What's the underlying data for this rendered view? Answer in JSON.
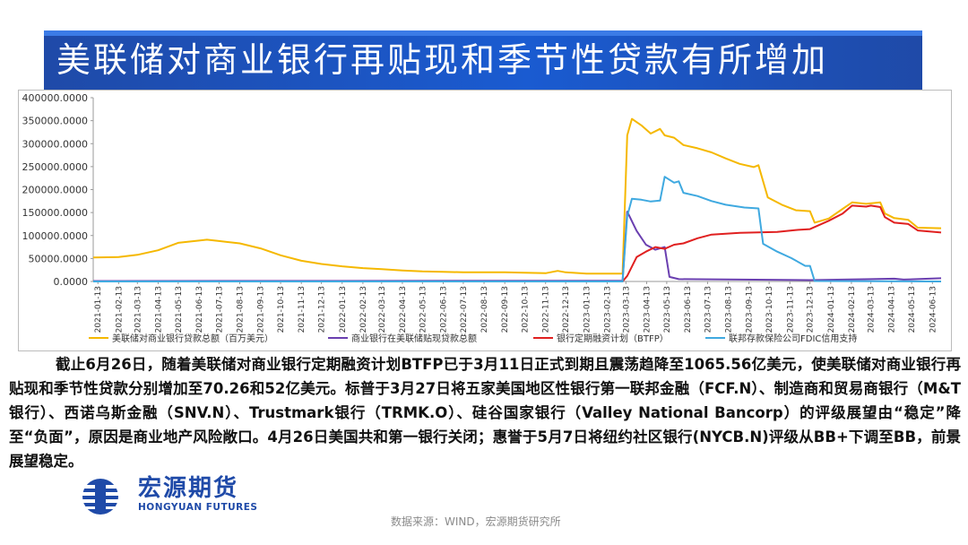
{
  "title": "美联储对商业银行再贴现和季节性贷款有所增加",
  "chart_data": {
    "type": "line",
    "y_ticks": [
      "400000.0000",
      "350000.0000",
      "300000.0000",
      "250000.0000",
      "200000.0000",
      "150000.0000",
      "100000.0000",
      "50000.0000",
      "0.0000"
    ],
    "ylim": [
      0,
      400000
    ],
    "x_labels": [
      "2021-01-13",
      "2021-02-13",
      "2021-03-13",
      "2021-04-13",
      "2021-05-13",
      "2021-06-13",
      "2021-07-13",
      "2021-08-13",
      "2021-09-13",
      "2021-10-13",
      "2021-11-13",
      "2021-12-13",
      "2022-01-13",
      "2022-02-13",
      "2022-03-13",
      "2022-04-13",
      "2022-05-13",
      "2022-06-13",
      "2022-07-13",
      "2022-08-13",
      "2022-09-13",
      "2022-10-13",
      "2022-11-13",
      "2022-12-13",
      "2023-01-13",
      "2023-02-13",
      "2023-03-13",
      "2023-04-13",
      "2023-05-13",
      "2023-06-13",
      "2023-07-13",
      "2023-08-13",
      "2023-09-13",
      "2023-10-13",
      "2023-11-13",
      "2023-12-13",
      "2024-01-13",
      "2024-02-13",
      "2024-03-13",
      "2024-04-13",
      "2024-05-13",
      "2024-06-13"
    ],
    "x_start": "2021-01-06",
    "x_end": "2024-06-26",
    "series": [
      {
        "name": "美联储对商业银行贷款总额（百万美元）",
        "color": "#f5b800",
        "points": [
          [
            "2021-01-06",
            52000
          ],
          [
            "2021-02-13",
            53000
          ],
          [
            "2021-03-13",
            58000
          ],
          [
            "2021-04-13",
            68000
          ],
          [
            "2021-05-13",
            84000
          ],
          [
            "2021-06-13",
            89000
          ],
          [
            "2021-06-25",
            91000
          ],
          [
            "2021-07-13",
            88000
          ],
          [
            "2021-08-13",
            83000
          ],
          [
            "2021-09-13",
            72000
          ],
          [
            "2021-10-13",
            57000
          ],
          [
            "2021-11-13",
            45000
          ],
          [
            "2021-12-13",
            38000
          ],
          [
            "2022-01-13",
            33000
          ],
          [
            "2022-02-13",
            29000
          ],
          [
            "2022-03-13",
            27000
          ],
          [
            "2022-04-13",
            24000
          ],
          [
            "2022-05-13",
            22000
          ],
          [
            "2022-06-13",
            21000
          ],
          [
            "2022-07-13",
            20000
          ],
          [
            "2022-08-13",
            20000
          ],
          [
            "2022-09-13",
            20000
          ],
          [
            "2022-10-13",
            19000
          ],
          [
            "2022-11-13",
            18000
          ],
          [
            "2022-12-01",
            23000
          ],
          [
            "2022-12-13",
            20000
          ],
          [
            "2023-01-13",
            17000
          ],
          [
            "2023-02-13",
            17000
          ],
          [
            "2023-03-08",
            17000
          ],
          [
            "2023-03-15",
            318000
          ],
          [
            "2023-03-22",
            354000
          ],
          [
            "2023-04-05",
            340000
          ],
          [
            "2023-04-19",
            322000
          ],
          [
            "2023-05-03",
            332000
          ],
          [
            "2023-05-10",
            318000
          ],
          [
            "2023-05-24",
            313000
          ],
          [
            "2023-06-07",
            297000
          ],
          [
            "2023-06-28",
            290000
          ],
          [
            "2023-07-19",
            281000
          ],
          [
            "2023-08-09",
            268000
          ],
          [
            "2023-08-30",
            256000
          ],
          [
            "2023-09-20",
            249000
          ],
          [
            "2023-09-27",
            253000
          ],
          [
            "2023-10-11",
            183000
          ],
          [
            "2023-11-01",
            167000
          ],
          [
            "2023-11-22",
            155000
          ],
          [
            "2023-12-13",
            153000
          ],
          [
            "2023-12-20",
            128000
          ],
          [
            "2024-01-10",
            137000
          ],
          [
            "2024-01-31",
            158000
          ],
          [
            "2024-02-14",
            172000
          ],
          [
            "2024-03-06",
            169000
          ],
          [
            "2024-03-27",
            172000
          ],
          [
            "2024-04-03",
            148000
          ],
          [
            "2024-04-17",
            138000
          ],
          [
            "2024-05-08",
            134000
          ],
          [
            "2024-05-22",
            117000
          ],
          [
            "2024-06-26",
            116000
          ]
        ]
      },
      {
        "name": "商业银行在美联储贴现贷款总额",
        "color": "#6a3fb0",
        "points": [
          [
            "2021-01-06",
            1000
          ],
          [
            "2022-12-13",
            1500
          ],
          [
            "2023-03-08",
            1500
          ],
          [
            "2023-03-15",
            152000
          ],
          [
            "2023-03-29",
            110000
          ],
          [
            "2023-04-12",
            80000
          ],
          [
            "2023-04-26",
            69000
          ],
          [
            "2023-05-10",
            75000
          ],
          [
            "2023-05-17",
            10000
          ],
          [
            "2023-05-31",
            5000
          ],
          [
            "2023-12-13",
            3000
          ],
          [
            "2024-03-13",
            5000
          ],
          [
            "2024-04-17",
            6000
          ],
          [
            "2024-05-01",
            4000
          ],
          [
            "2024-06-26",
            7000
          ]
        ]
      },
      {
        "name": "银行定期融资计划（BTFP）",
        "color": "#e02020",
        "points": [
          [
            "2021-01-06",
            0
          ],
          [
            "2023-03-08",
            0
          ],
          [
            "2023-03-15",
            12000
          ],
          [
            "2023-03-29",
            53000
          ],
          [
            "2023-04-12",
            65000
          ],
          [
            "2023-04-26",
            75000
          ],
          [
            "2023-05-10",
            71000
          ],
          [
            "2023-05-24",
            80000
          ],
          [
            "2023-06-07",
            83000
          ],
          [
            "2023-06-28",
            94000
          ],
          [
            "2023-07-19",
            102000
          ],
          [
            "2023-08-09",
            104000
          ],
          [
            "2023-08-30",
            106000
          ],
          [
            "2023-09-27",
            107000
          ],
          [
            "2023-10-25",
            108000
          ],
          [
            "2023-11-22",
            112000
          ],
          [
            "2023-12-13",
            114000
          ],
          [
            "2024-01-10",
            132000
          ],
          [
            "2024-01-31",
            148000
          ],
          [
            "2024-02-14",
            165000
          ],
          [
            "2024-03-06",
            163000
          ],
          [
            "2024-03-13",
            165000
          ],
          [
            "2024-03-27",
            162000
          ],
          [
            "2024-04-03",
            140000
          ],
          [
            "2024-04-17",
            128000
          ],
          [
            "2024-05-08",
            125000
          ],
          [
            "2024-05-22",
            111000
          ],
          [
            "2024-06-26",
            106500
          ]
        ]
      },
      {
        "name": "联邦存款保险公司FDIC信用支持",
        "color": "#3fa9e0",
        "points": [
          [
            "2021-01-06",
            0
          ],
          [
            "2023-03-08",
            0
          ],
          [
            "2023-03-15",
            142000
          ],
          [
            "2023-03-22",
            180000
          ],
          [
            "2023-04-05",
            178000
          ],
          [
            "2023-04-19",
            174000
          ],
          [
            "2023-05-03",
            176000
          ],
          [
            "2023-05-10",
            228000
          ],
          [
            "2023-05-24",
            215000
          ],
          [
            "2023-05-31",
            218000
          ],
          [
            "2023-06-07",
            193000
          ],
          [
            "2023-06-28",
            186000
          ],
          [
            "2023-07-19",
            175000
          ],
          [
            "2023-08-09",
            167000
          ],
          [
            "2023-09-06",
            161000
          ],
          [
            "2023-09-27",
            159000
          ],
          [
            "2023-10-04",
            82000
          ],
          [
            "2023-10-25",
            65000
          ],
          [
            "2023-11-15",
            51000
          ],
          [
            "2023-12-06",
            34000
          ],
          [
            "2023-12-13",
            34000
          ],
          [
            "2023-12-20",
            1000
          ],
          [
            "2024-06-26",
            0
          ]
        ]
      }
    ]
  },
  "body": {
    "paragraph": "截止6月26日，随着美联储对商业银行定期融资计划BTFP已于3月11日正式到期且震荡趋降至1065.56亿美元，使美联储对商业银行再贴现和季节性贷款分别增加至70.26和52亿美元。标普于3月27日将五家美国地区性银行第一联邦金融（FCF.N）、制造商和贸易商银行（M&T银行）、西诺乌斯金融（SNV.N）、Trustmark银行（TRMK.O）、硅谷国家银行（Valley National Bancorp）的评级展望由“稳定”降至“负面”，原因是商业地产风险敞口。4月26日美国共和第一银行关闭；惠誉于5月7日将纽约社区银行(NYCB.N)评级从BB+下调至BB，前景展望稳定。"
  },
  "logo": {
    "cn": "宏源期货",
    "en": "HONGYUAN FUTURES",
    "color": "#1f4aa8"
  },
  "source": "数据来源：WIND，宏源期货研究所"
}
